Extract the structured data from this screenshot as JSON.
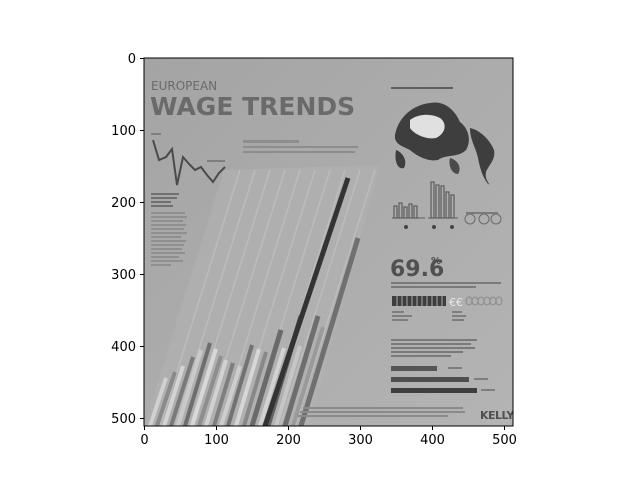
{
  "figure": {
    "x_ticks": [
      "0",
      "100",
      "200",
      "300",
      "400",
      "500"
    ],
    "y_ticks": [
      "0",
      "100",
      "200",
      "300",
      "400",
      "500"
    ]
  },
  "image": {
    "title_line1": "EUROPEAN",
    "title_line2": "WAGE TRENDS",
    "headline_stat": "69.6",
    "headline_unit": "%",
    "brand": "KELLY",
    "colors": {
      "background": "#a9a9a9",
      "panel": "#a3a3a3",
      "dark": "#3a3a3a",
      "mid": "#7a7a7a",
      "light": "#c8c8c8"
    }
  }
}
